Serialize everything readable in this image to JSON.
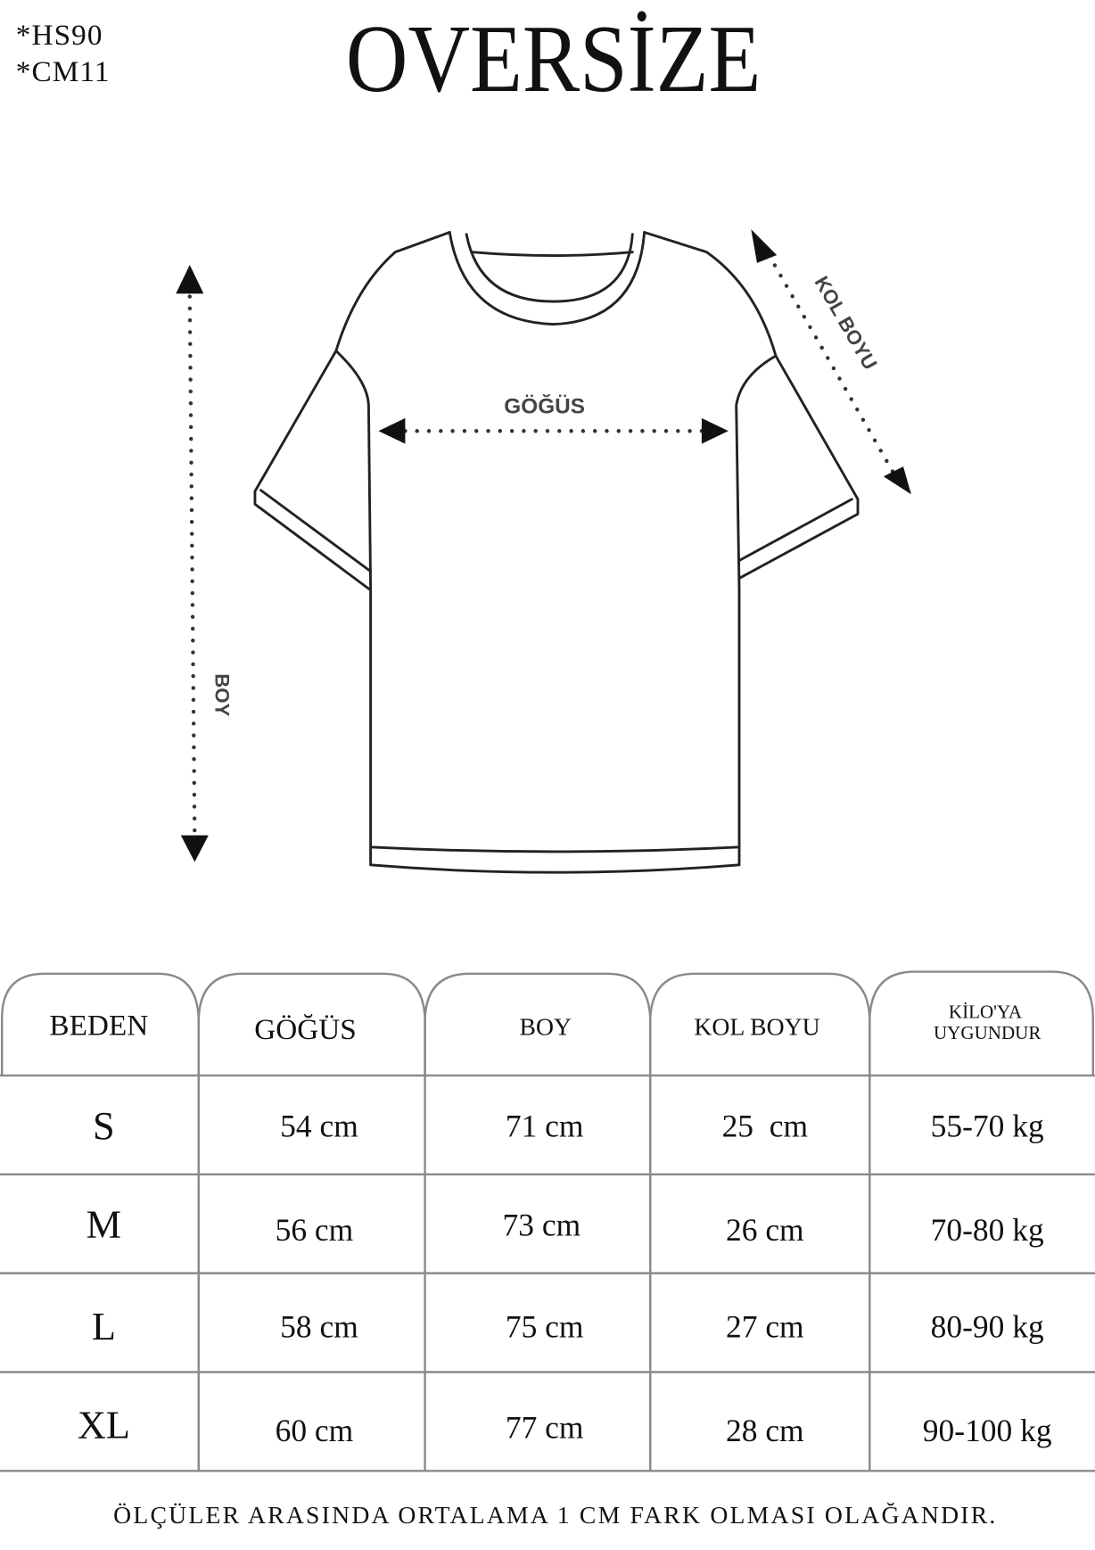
{
  "codes": [
    "*HS90",
    "*CM11"
  ],
  "title": "OVERSİZE",
  "diagram": {
    "chest_label": "GÖĞÜS",
    "length_label": "BOY",
    "sleeve_label": "KOL BOYU"
  },
  "table": {
    "headers": [
      "BEDEN",
      "GÖĞÜS",
      "BOY",
      "KOL BOYU",
      "KİLO'YA",
      "UYGUNDUR"
    ],
    "rows": [
      {
        "size": "S",
        "chest": "54 cm",
        "length": "71 cm",
        "sleeve": "25  cm",
        "weight": "55-70 kg"
      },
      {
        "size": "M",
        "chest": "56 cm",
        "length": "73 cm",
        "sleeve": "26 cm",
        "weight": "70-80 kg"
      },
      {
        "size": "L",
        "chest": "58 cm",
        "length": "75 cm",
        "sleeve": "27 cm",
        "weight": "80-90 kg"
      },
      {
        "size": "XL",
        "chest": "60 cm",
        "length": "77 cm",
        "sleeve": "28 cm",
        "weight": "90-100 kg"
      }
    ]
  },
  "footer": "ÖLÇÜLER ARASINDA ORTALAMA 1 CM FARK OLMASI OLAĞANDIR."
}
